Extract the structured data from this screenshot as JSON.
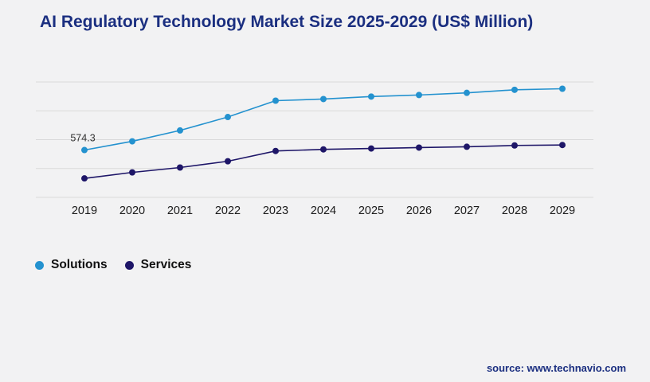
{
  "title": "AI Regulatory Technology Market Size 2025-2029 (US$ Million)",
  "source": "source: www.technavio.com",
  "colors": {
    "title": "#1b2f80",
    "source": "#1b2f80",
    "background": "#f2f2f3",
    "gridline": "#d9d9d9",
    "axis_text": "#1a1a1a",
    "solutions": "#2492cf",
    "services": "#1e1668"
  },
  "legend": {
    "items": [
      {
        "label": "Solutions",
        "color": "#2492cf"
      },
      {
        "label": "Services",
        "color": "#1e1668"
      }
    ]
  },
  "chart_data": {
    "type": "line",
    "title": "AI Regulatory Technology Market Size 2025-2029 (US$ Million)",
    "xlabel": "",
    "ylabel": "",
    "x": [
      "2019",
      "2020",
      "2021",
      "2022",
      "2023",
      "2024",
      "2025",
      "2026",
      "2027",
      "2028",
      "2029"
    ],
    "series": [
      {
        "name": "Solutions",
        "color": "#2492cf",
        "values": [
          574.3,
          680,
          812,
          975,
          1173,
          1193,
          1223,
          1242,
          1268,
          1305,
          1318
        ]
      },
      {
        "name": "Services",
        "color": "#1e1668",
        "values": [
          230,
          303,
          362,
          438,
          563,
          582,
          593,
          604,
          614,
          630,
          635
        ]
      }
    ],
    "ylim": [
      0,
      1400
    ],
    "grid": true,
    "gridline_count": 5,
    "legend_position": "bottom-left",
    "annotations": [
      {
        "series": "Solutions",
        "x": "2019",
        "text": "574.3"
      }
    ]
  }
}
